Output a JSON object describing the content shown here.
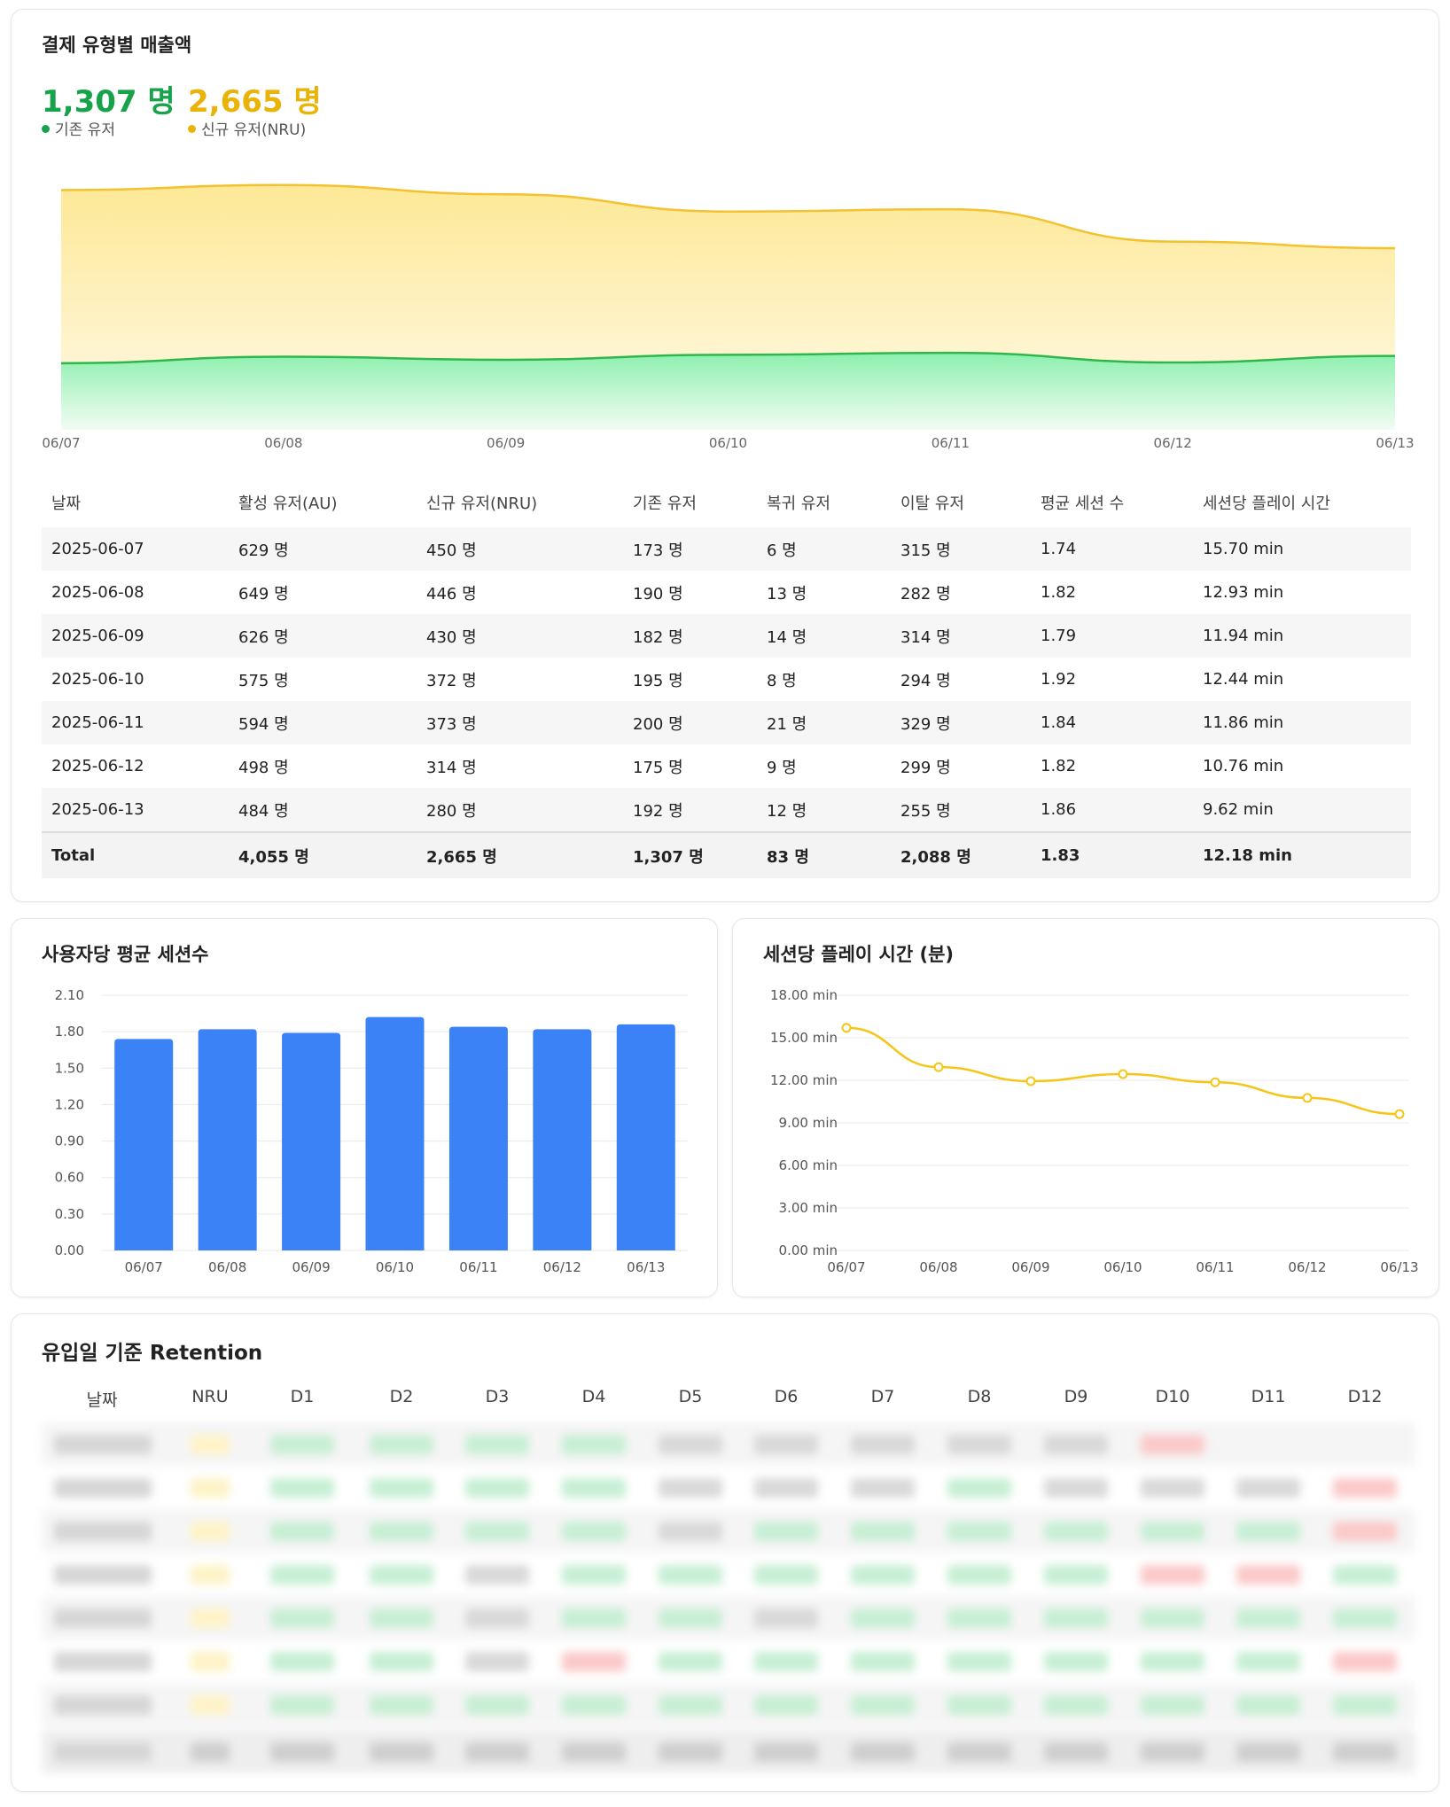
{
  "revenue_card": {
    "title": "결제 유형별 매출액",
    "existing": {
      "value": "1,307 명",
      "label": "기존 유저",
      "color": "#16a34a"
    },
    "nru": {
      "value": "2,665 명",
      "label": "신규 유저(NRU)",
      "color": "#eab308"
    }
  },
  "chart_data": [
    {
      "type": "area",
      "x": [
        "06/07",
        "06/08",
        "06/09",
        "06/10",
        "06/11",
        "06/12",
        "06/13"
      ],
      "series": [
        {
          "name": "기존 유저",
          "values": [
            173,
            190,
            182,
            195,
            200,
            175,
            192
          ],
          "color": "#22c55e"
        },
        {
          "name": "신규 유저(NRU)",
          "values": [
            450,
            446,
            430,
            372,
            373,
            314,
            280
          ],
          "color": "#f5c518"
        }
      ],
      "stacked": true,
      "ylim": [
        0,
        700
      ],
      "grid": false
    },
    {
      "type": "bar",
      "title": "사용자당 평균 세션수",
      "categories": [
        "06/07",
        "06/08",
        "06/09",
        "06/10",
        "06/11",
        "06/12",
        "06/13"
      ],
      "values": [
        1.74,
        1.82,
        1.79,
        1.92,
        1.84,
        1.82,
        1.86
      ],
      "ylim": [
        0,
        2.1
      ],
      "yticks": [
        "0.00",
        "0.30",
        "0.60",
        "0.90",
        "1.20",
        "1.50",
        "1.80",
        "2.10"
      ],
      "color": "#3b82f6",
      "grid": true
    },
    {
      "type": "line",
      "title": "세션당 플레이 시간 (분)",
      "categories": [
        "06/07",
        "06/08",
        "06/09",
        "06/10",
        "06/11",
        "06/12",
        "06/13"
      ],
      "values": [
        15.7,
        12.93,
        11.94,
        12.44,
        11.86,
        10.76,
        9.62
      ],
      "ylim": [
        0,
        18
      ],
      "yticks": [
        "0.00 min",
        "3.00 min",
        "6.00 min",
        "9.00 min",
        "12.00 min",
        "15.00 min",
        "18.00 min"
      ],
      "color": "#f5c518",
      "grid": true
    }
  ],
  "daily_table": {
    "headers": [
      "날짜",
      "활성 유저(AU)",
      "신규 유저(NRU)",
      "기존 유저",
      "복귀 유저",
      "이탈 유저",
      "평균 세션 수",
      "세션당 플레이 시간"
    ],
    "rows": [
      [
        "2025-06-07",
        "629 명",
        "450 명",
        "173 명",
        "6 명",
        "315 명",
        "1.74",
        "15.70 min"
      ],
      [
        "2025-06-08",
        "649 명",
        "446 명",
        "190 명",
        "13 명",
        "282 명",
        "1.82",
        "12.93 min"
      ],
      [
        "2025-06-09",
        "626 명",
        "430 명",
        "182 명",
        "14 명",
        "314 명",
        "1.79",
        "11.94 min"
      ],
      [
        "2025-06-10",
        "575 명",
        "372 명",
        "195 명",
        "8 명",
        "294 명",
        "1.92",
        "12.44 min"
      ],
      [
        "2025-06-11",
        "594 명",
        "373 명",
        "200 명",
        "21 명",
        "329 명",
        "1.84",
        "11.86 min"
      ],
      [
        "2025-06-12",
        "498 명",
        "314 명",
        "175 명",
        "9 명",
        "299 명",
        "1.82",
        "10.76 min"
      ],
      [
        "2025-06-13",
        "484 명",
        "280 명",
        "192 명",
        "12 명",
        "255 명",
        "1.86",
        "9.62 min"
      ]
    ],
    "total": [
      "Total",
      "4,055 명",
      "2,665 명",
      "1,307 명",
      "83 명",
      "2,088 명",
      "1.83",
      "12.18 min"
    ]
  },
  "retention": {
    "title": "유입일 기준 Retention",
    "headers": [
      "날짜",
      "NRU",
      "D1",
      "D2",
      "D3",
      "D4",
      "D5",
      "D6",
      "D7",
      "D8",
      "D9",
      "D10",
      "D11",
      "D12"
    ],
    "colors": {
      "positive": "#dcfce7",
      "negative": "#fee2e2",
      "nru": "#fef3c7"
    }
  }
}
